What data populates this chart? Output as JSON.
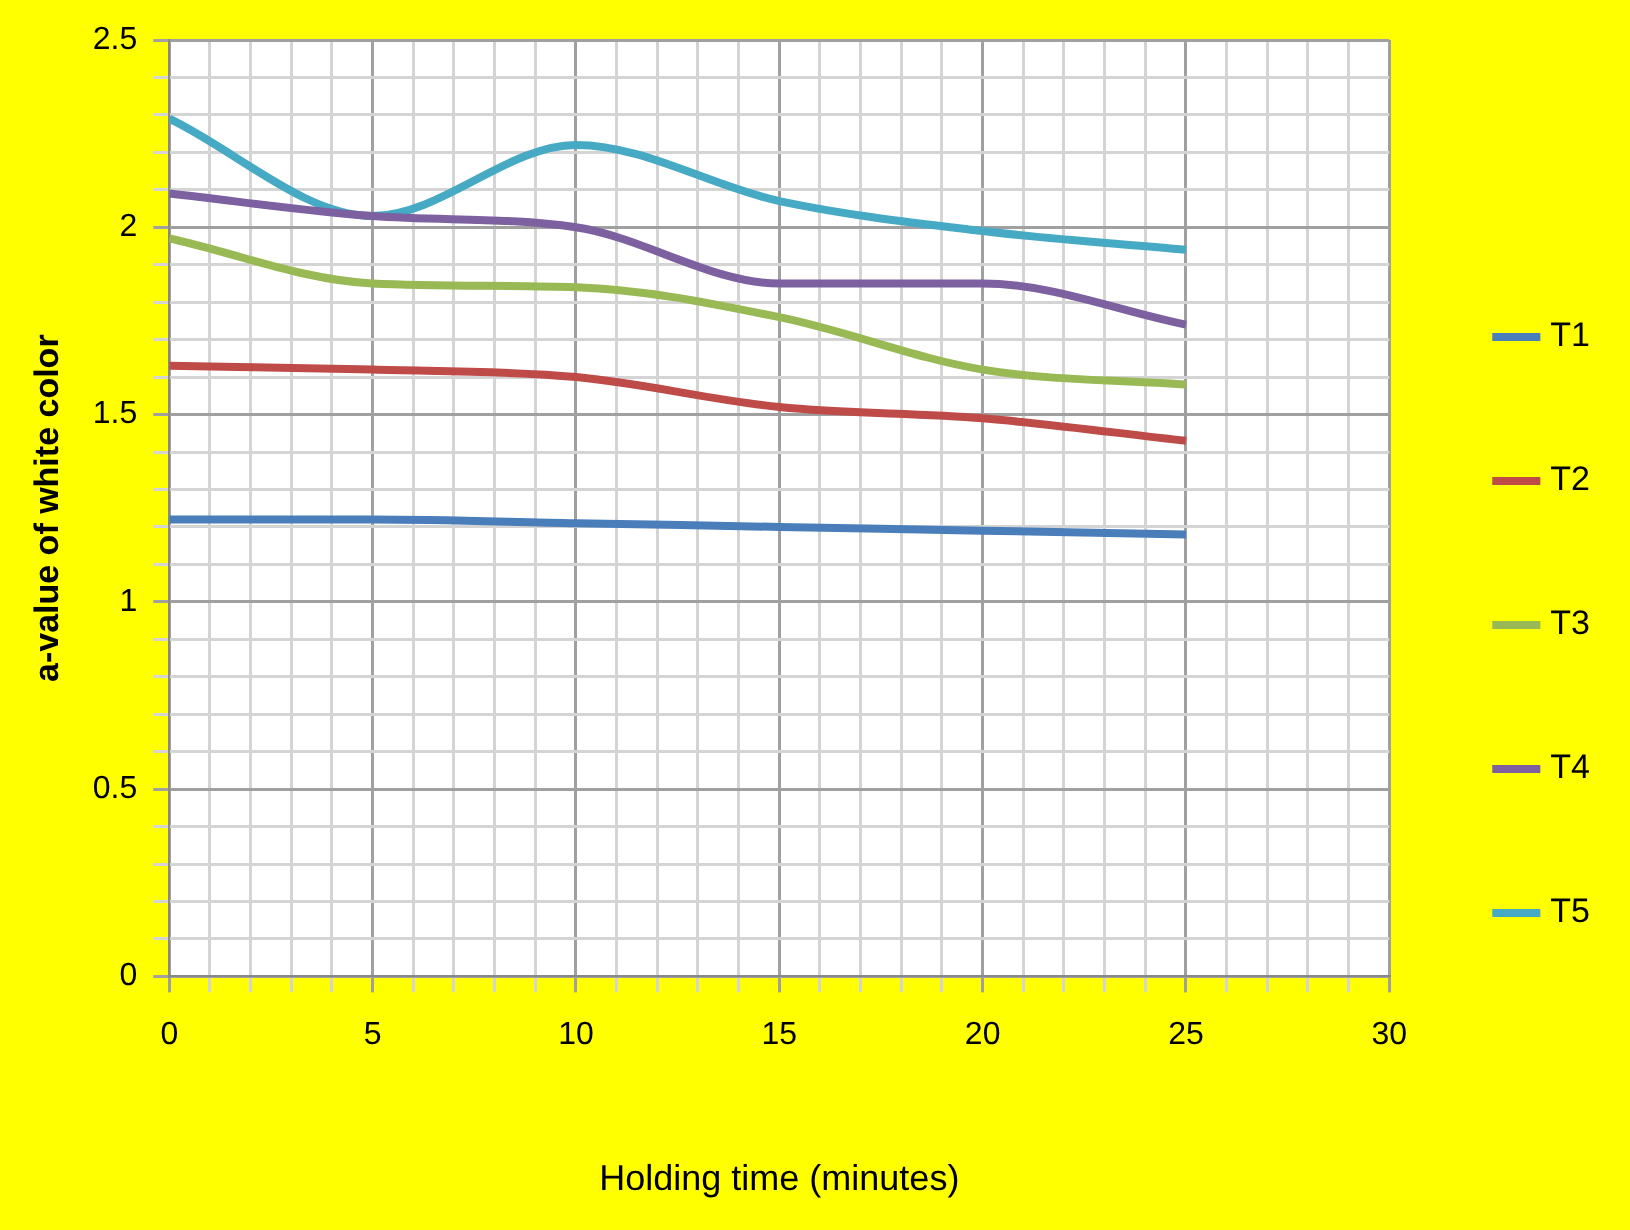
{
  "chart_data": {
    "type": "line",
    "xlabel": "Holding time (minutes)",
    "ylabel": "a-value of white color",
    "x": [
      0,
      5,
      10,
      15,
      20,
      25
    ],
    "series": [
      {
        "name": "T1",
        "color": "#4a7ebb",
        "values": [
          1.22,
          1.22,
          1.21,
          1.2,
          1.19,
          1.18
        ]
      },
      {
        "name": "T2",
        "color": "#be4b48",
        "values": [
          1.63,
          1.62,
          1.6,
          1.52,
          1.49,
          1.43
        ]
      },
      {
        "name": "T3",
        "color": "#98b954",
        "values": [
          1.97,
          1.85,
          1.84,
          1.76,
          1.62,
          1.58
        ]
      },
      {
        "name": "T4",
        "color": "#7d60a0",
        "values": [
          2.09,
          2.03,
          2.0,
          1.85,
          1.85,
          1.74
        ]
      },
      {
        "name": "T5",
        "color": "#46aac5",
        "values": [
          2.29,
          2.03,
          2.22,
          2.07,
          1.99,
          1.94
        ]
      }
    ],
    "xlim": [
      0,
      30
    ],
    "xticks": [
      0,
      {
        "value": 1,
        "label": null
      },
      {
        "value": 2,
        "label": null
      },
      {
        "value": 3,
        "label": null
      },
      {
        "value": 4,
        "label": null
      },
      5,
      {
        "value": 6,
        "label": null
      },
      {
        "value": 7,
        "label": null
      },
      {
        "value": 8,
        "label": null
      },
      {
        "value": 9,
        "label": null
      },
      10,
      {
        "value": 11,
        "label": null
      },
      {
        "value": 12,
        "label": null
      },
      {
        "value": 13,
        "label": null
      },
      {
        "value": 14,
        "label": null
      },
      15,
      {
        "value": 16,
        "label": null
      },
      {
        "value": 17,
        "label": null
      },
      {
        "value": 18,
        "label": null
      },
      {
        "value": 19,
        "label": null
      },
      20,
      {
        "value": 21,
        "label": null
      },
      {
        "value": 22,
        "label": null
      },
      {
        "value": 23,
        "label": null
      },
      {
        "value": 24,
        "label": null
      },
      25,
      {
        "value": 26,
        "label": null
      },
      {
        "value": 27,
        "label": null
      },
      {
        "value": 28,
        "label": null
      },
      {
        "value": 29,
        "label": null
      },
      30
    ],
    "ylim": [
      0,
      2.5
    ],
    "yticks": [
      0,
      {
        "value": 0.1,
        "label": null
      },
      {
        "value": 0.2,
        "label": null
      },
      {
        "value": 0.3,
        "label": null
      },
      {
        "value": 0.4,
        "label": null
      },
      0.5,
      {
        "value": 0.6,
        "label": null
      },
      {
        "value": 0.7,
        "label": null
      },
      {
        "value": 0.8,
        "label": null
      },
      {
        "value": 0.9,
        "label": null
      },
      1,
      {
        "value": 1.1,
        "label": null
      },
      {
        "value": 1.2,
        "label": null
      },
      {
        "value": 1.3,
        "label": null
      },
      {
        "value": 1.4,
        "label": null
      },
      1.5,
      {
        "value": 1.6,
        "label": null
      },
      {
        "value": 1.7,
        "label": null
      },
      {
        "value": 1.8,
        "label": null
      },
      {
        "value": 1.9,
        "label": null
      },
      2,
      {
        "value": 2.1,
        "label": null
      },
      {
        "value": 2.2,
        "label": null
      },
      {
        "value": 2.3,
        "label": null
      },
      {
        "value": 2.4,
        "label": null
      },
      2.5
    ],
    "grid": true,
    "legend": "right",
    "marker": "none",
    "line_style": "solid"
  }
}
